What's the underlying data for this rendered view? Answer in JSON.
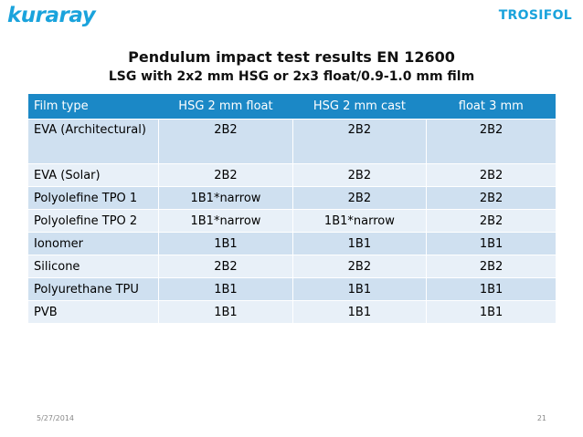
{
  "header": {
    "logo_left": "kuraray",
    "logo_right": "TROSIFOL"
  },
  "title": "Pendulum impact test results EN 12600",
  "subtitle": "LSG with 2x2 mm HSG or 2x3 float/0.9-1.0 mm film",
  "table": {
    "headers": [
      "Film type",
      "HSG 2 mm float",
      "HSG 2 mm cast",
      "float 3 mm"
    ],
    "rows": [
      [
        "EVA (Architectural)",
        "2B2",
        "2B2",
        "2B2"
      ],
      [
        "EVA (Solar)",
        "2B2",
        "2B2",
        "2B2"
      ],
      [
        "Polyolefine TPO 1",
        "1B1*narrow",
        "2B2",
        "2B2"
      ],
      [
        "Polyolefine TPO 2",
        "1B1*narrow",
        "1B1*narrow",
        "2B2"
      ],
      [
        "Ionomer",
        "1B1",
        "1B1",
        "1B1"
      ],
      [
        "Silicone",
        "2B2",
        "2B2",
        "2B2"
      ],
      [
        "Polyurethane TPU",
        "1B1",
        "1B1",
        "1B1"
      ],
      [
        "PVB",
        "1B1",
        "1B1",
        "1B1"
      ]
    ]
  },
  "footer": {
    "date": "5/27/2014",
    "page": "21"
  },
  "colors": {
    "brand": "#1aa3dc",
    "header_bg": "#1b88c6",
    "row_odd": "#cfe0f0",
    "row_even": "#e8f0f8"
  }
}
